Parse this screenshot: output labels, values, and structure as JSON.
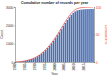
{
  "chart_data": {
    "type": "bar",
    "title": "Cumulative number of records per year",
    "x_label": "Year",
    "y_label": "Count",
    "y2_label": "Cumulative %",
    "categories": [
      "1980",
      null,
      null,
      null,
      null,
      "1985",
      null,
      null,
      null,
      null,
      "1990",
      null,
      null,
      null,
      null,
      "1995",
      null,
      null,
      null,
      null,
      "2000",
      null,
      null,
      null,
      null,
      "2005",
      null,
      null,
      null,
      null,
      "2010",
      null,
      null,
      null,
      null,
      "2015",
      null,
      null,
      null,
      null
    ],
    "series": [
      {
        "name": "Count",
        "type": "bar",
        "color": "#4a6fb5",
        "values": [
          5,
          10,
          20,
          35,
          50,
          70,
          95,
          125,
          160,
          200,
          250,
          310,
          380,
          460,
          550,
          650,
          760,
          880,
          1010,
          1150,
          1300,
          1460,
          1620,
          1790,
          1960,
          2130,
          2290,
          2440,
          2570,
          2680,
          2760,
          2810,
          2840,
          2860,
          2870,
          2880,
          2885,
          2890,
          2892,
          2895
        ]
      },
      {
        "name": "Cumulative %",
        "type": "line",
        "color": "#e0302a",
        "axis": "y2",
        "values": [
          0.2,
          0.3,
          0.7,
          1.2,
          1.7,
          2.4,
          3.3,
          4.3,
          5.5,
          6.9,
          8.6,
          10.7,
          13.1,
          15.9,
          19.0,
          22.5,
          26.3,
          30.4,
          34.9,
          39.7,
          44.9,
          50.4,
          56.0,
          61.8,
          67.7,
          73.6,
          79.1,
          84.3,
          88.8,
          92.6,
          95.3,
          97.1,
          98.1,
          98.8,
          99.1,
          99.5,
          99.7,
          99.8,
          99.9,
          100
        ]
      }
    ],
    "ylim": [
      0,
      3000
    ],
    "yticks": [
      0,
      1000,
      2000,
      3000
    ],
    "y2lim": [
      0,
      100
    ],
    "y2ticks": [
      0,
      50,
      100
    ],
    "grid": false
  }
}
